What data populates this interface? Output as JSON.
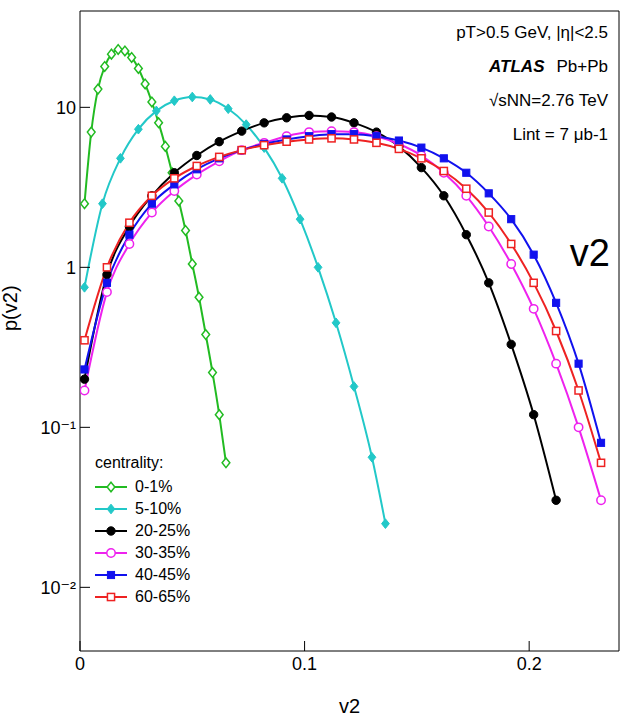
{
  "chart_data": {
    "type": "line",
    "title": null,
    "annotations": [
      "pT>0.5 GeV, |η|<2.5",
      "ATLAS",
      "Pb+Pb",
      "√sNN=2.76 TeV",
      "Lint = 7 μb-1",
      "v2"
    ],
    "x_label": "v2",
    "y_label": "p(v2)",
    "log": "y",
    "grid": false,
    "legend": "bottom-left",
    "legend_title": "centrality:",
    "xlim": [
      0,
      0.24
    ],
    "xticks": [
      0,
      0.1,
      0.2
    ],
    "ylim": [
      0.004,
      40
    ],
    "yticks": [
      {
        "value": 0.01,
        "label": "10⁻²"
      },
      {
        "value": 0.1,
        "label": "10⁻¹"
      },
      1,
      10
    ],
    "series": [
      {
        "name": "0-1%",
        "color": "#22bb22",
        "marker": "diamond-open",
        "x": [
          0.002,
          0.005,
          0.008,
          0.011,
          0.014,
          0.017,
          0.02,
          0.023,
          0.026,
          0.029,
          0.032,
          0.035,
          0.038,
          0.041,
          0.044,
          0.047,
          0.05,
          0.053,
          0.056,
          0.059,
          0.062,
          0.065
        ],
        "values": [
          2.5,
          7,
          13,
          18,
          21.5,
          23,
          22.5,
          20.5,
          17.5,
          14,
          10.8,
          8,
          5.7,
          3.9,
          2.6,
          1.7,
          1.05,
          0.65,
          0.38,
          0.22,
          0.12,
          0.06
        ]
      },
      {
        "name": "5-10%",
        "color": "#22c8c8",
        "marker": "diamond",
        "x": [
          0.002,
          0.01,
          0.018,
          0.026,
          0.034,
          0.042,
          0.05,
          0.058,
          0.066,
          0.074,
          0.082,
          0.09,
          0.098,
          0.106,
          0.114,
          0.122,
          0.13,
          0.136
        ],
        "values": [
          0.75,
          2.5,
          4.8,
          7.3,
          9.5,
          11,
          11.6,
          11.2,
          9.8,
          7.8,
          5.6,
          3.6,
          2.0,
          1.0,
          0.45,
          0.18,
          0.065,
          0.025
        ]
      },
      {
        "name": "20-25%",
        "color": "#000000",
        "marker": "circle",
        "x": [
          0.002,
          0.012,
          0.022,
          0.032,
          0.042,
          0.052,
          0.062,
          0.072,
          0.082,
          0.092,
          0.102,
          0.112,
          0.122,
          0.132,
          0.142,
          0.152,
          0.162,
          0.172,
          0.182,
          0.192,
          0.202,
          0.212
        ],
        "values": [
          0.2,
          0.9,
          1.8,
          2.8,
          3.9,
          5.0,
          6.1,
          7.1,
          8.0,
          8.6,
          8.9,
          8.7,
          8.0,
          7.0,
          5.7,
          4.2,
          2.8,
          1.6,
          0.8,
          0.33,
          0.12,
          0.035
        ]
      },
      {
        "name": "30-35%",
        "color": "#ee22ee",
        "marker": "circle-open",
        "x": [
          0.002,
          0.012,
          0.022,
          0.032,
          0.042,
          0.052,
          0.062,
          0.072,
          0.082,
          0.092,
          0.102,
          0.112,
          0.122,
          0.132,
          0.142,
          0.152,
          0.162,
          0.172,
          0.182,
          0.192,
          0.202,
          0.212,
          0.222,
          0.232
        ],
        "values": [
          0.17,
          0.7,
          1.4,
          2.2,
          3.0,
          3.8,
          4.6,
          5.4,
          6.0,
          6.6,
          7.0,
          7.1,
          7.0,
          6.6,
          5.9,
          5.0,
          3.9,
          2.8,
          1.8,
          1.05,
          0.55,
          0.25,
          0.1,
          0.035
        ]
      },
      {
        "name": "40-45%",
        "color": "#1111ee",
        "marker": "square",
        "x": [
          0.002,
          0.012,
          0.022,
          0.032,
          0.042,
          0.052,
          0.062,
          0.072,
          0.082,
          0.092,
          0.102,
          0.112,
          0.122,
          0.132,
          0.142,
          0.152,
          0.162,
          0.172,
          0.182,
          0.192,
          0.202,
          0.212,
          0.222,
          0.232
        ],
        "values": [
          0.23,
          0.8,
          1.6,
          2.5,
          3.3,
          4.1,
          4.8,
          5.4,
          5.9,
          6.3,
          6.6,
          6.8,
          6.8,
          6.6,
          6.2,
          5.6,
          4.8,
          3.9,
          2.9,
          2.0,
          1.2,
          0.6,
          0.25,
          0.08
        ]
      },
      {
        "name": "60-65%",
        "color": "#ee2222",
        "marker": "square-open",
        "x": [
          0.002,
          0.012,
          0.022,
          0.032,
          0.042,
          0.052,
          0.062,
          0.072,
          0.082,
          0.092,
          0.102,
          0.112,
          0.122,
          0.132,
          0.142,
          0.152,
          0.162,
          0.172,
          0.182,
          0.192,
          0.202,
          0.212,
          0.222,
          0.232
        ],
        "values": [
          0.35,
          1.0,
          1.9,
          2.8,
          3.6,
          4.3,
          4.9,
          5.4,
          5.8,
          6.1,
          6.3,
          6.4,
          6.3,
          6.0,
          5.5,
          4.8,
          4.0,
          3.1,
          2.2,
          1.4,
          0.8,
          0.4,
          0.17,
          0.06
        ]
      }
    ]
  }
}
